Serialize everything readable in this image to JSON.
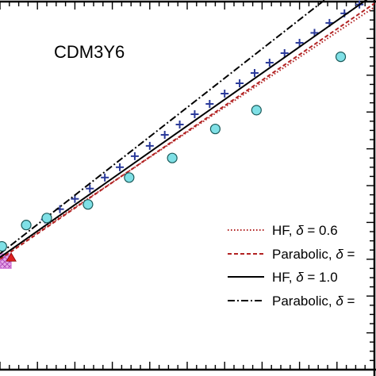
{
  "chart_data": {
    "type": "line",
    "panel_label": "CDM3Y6",
    "xlim": [
      0,
      10
    ],
    "ylim": [
      0,
      10
    ],
    "grid": false,
    "legend_placement": "bottom-right",
    "series": [
      {
        "legend_label": "HF, ",
        "legend_symbol": "δ",
        "legend_value": "= 0.6",
        "style": "dotted",
        "color": "#b22222",
        "x": [
          0.0,
          10.0
        ],
        "y": [
          3.05,
          9.85
        ]
      },
      {
        "legend_label": "Parabolic, ",
        "legend_symbol": "δ",
        "legend_value": "=",
        "style": "dashed",
        "color": "#b22222",
        "x": [
          0.0,
          10.0
        ],
        "y": [
          3.0,
          9.95
        ]
      },
      {
        "legend_label": "HF, ",
        "legend_symbol": "δ",
        "legend_value": "= 1.0",
        "style": "solid",
        "color": "#000000",
        "x": [
          0.0,
          10.0
        ],
        "y": [
          3.05,
          10.2
        ]
      },
      {
        "legend_label": "Parabolic, ",
        "legend_symbol": "δ",
        "legend_value": "=",
        "style": "dashdot",
        "color": "#000000",
        "x": [
          0.0,
          10.0
        ],
        "y": [
          3.15,
          11.1
        ]
      }
    ],
    "cross_points": {
      "color": "#2a3a9a",
      "x": [
        1.2,
        1.6,
        2.0,
        2.4,
        2.8,
        3.2,
        3.6,
        4.0,
        4.4,
        4.8,
        5.2,
        5.6,
        6.0,
        6.4,
        6.8,
        7.2,
        7.6,
        8.0,
        8.4,
        8.8,
        9.2,
        9.6
      ],
      "y": [
        4.08,
        4.36,
        4.64,
        4.92,
        5.22,
        5.5,
        5.8,
        6.08,
        6.38,
        6.66,
        6.94,
        7.22,
        7.5,
        7.78,
        8.06,
        8.34,
        8.6,
        8.88,
        9.15,
        9.42,
        9.68,
        9.92
      ]
    },
    "circle_points": {
      "fill": "#7fe0e6",
      "stroke": "#1b5a5a",
      "x": [
        0.05,
        0.7,
        1.25,
        2.35,
        3.45,
        4.6,
        5.75,
        6.85,
        9.1
      ],
      "y": [
        3.35,
        3.93,
        4.12,
        4.49,
        5.22,
        5.75,
        6.54,
        7.05,
        8.5
      ]
    },
    "triangle_points": {
      "fill": "#dd2020",
      "x": [
        0.3
      ],
      "y": [
        3.05
      ]
    },
    "hatched_box": {
      "fill": "#d77bdc",
      "x_range": [
        0.0,
        0.3
      ],
      "y_range": [
        2.75,
        3.15
      ]
    }
  }
}
